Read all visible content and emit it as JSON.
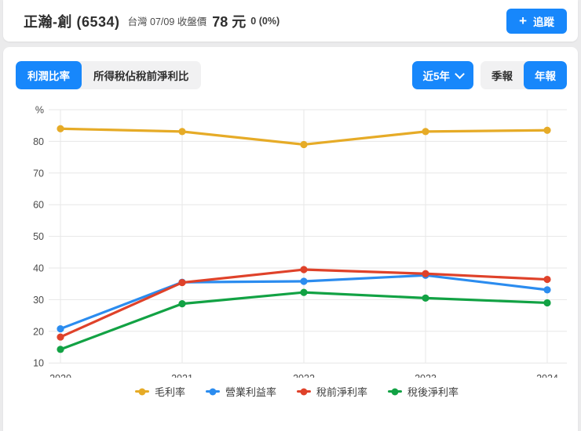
{
  "header": {
    "stock_title": "正瀚-創 (6534)",
    "market_info": "台灣 07/09 收盤價",
    "price": "78 元",
    "change": "0 (0%)",
    "follow_label": "追蹤",
    "plus_icon": "+"
  },
  "toolbar": {
    "tabs": [
      {
        "label": "利潤比率",
        "active": true
      },
      {
        "label": "所得稅佔稅前淨利比",
        "active": false
      }
    ],
    "range_label": "近5年",
    "period_toggle": [
      {
        "label": "季報",
        "active": false
      },
      {
        "label": "年報",
        "active": true
      }
    ]
  },
  "colors": {
    "accent_blue": "#1787fb",
    "grid": "#e7e7e7",
    "axis_text": "#4a4a4a"
  },
  "chart_data": {
    "type": "line",
    "unit_label": "%",
    "categories": [
      "2020",
      "2021",
      "2022",
      "2023",
      "2024"
    ],
    "series": [
      {
        "name": "毛利率",
        "color": "#e6ab27",
        "values": [
          84.0,
          83.1,
          79.0,
          83.1,
          83.5
        ]
      },
      {
        "name": "營業利益率",
        "color": "#2b8cef",
        "values": [
          20.8,
          35.5,
          35.8,
          37.7,
          33.1
        ]
      },
      {
        "name": "稅前淨利率",
        "color": "#df422a",
        "values": [
          18.2,
          35.4,
          39.5,
          38.2,
          36.4
        ]
      },
      {
        "name": "稅後淨利率",
        "color": "#12a244",
        "values": [
          14.3,
          28.7,
          32.3,
          30.5,
          29.0
        ]
      }
    ],
    "ylim": [
      10,
      90
    ],
    "yticks": [
      10,
      20,
      30,
      40,
      50,
      60,
      70,
      80
    ],
    "grid": true,
    "legend_position": "bottom"
  }
}
